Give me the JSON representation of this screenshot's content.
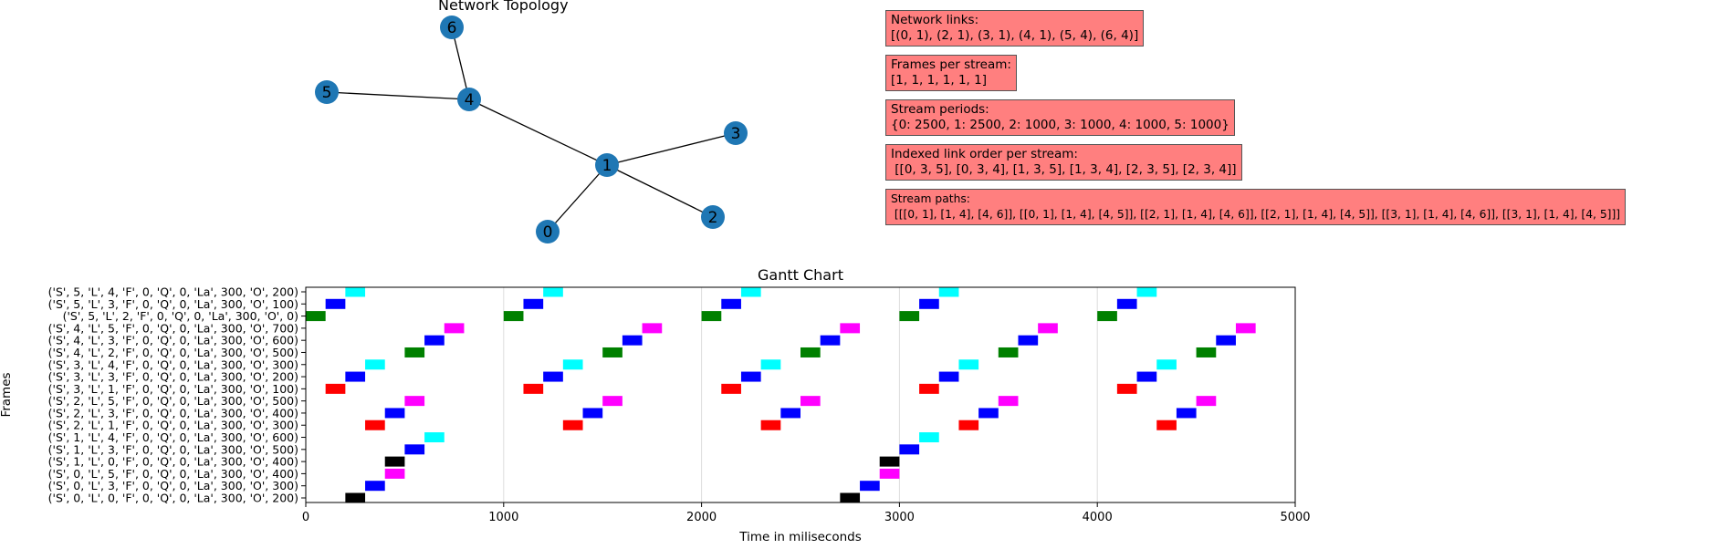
{
  "topology": {
    "title": "Network  Topology",
    "nodes": [
      {
        "id": "0",
        "x": 0.35
      },
      {
        "id": "1",
        "x": 0.5
      },
      {
        "id": "2",
        "x": 0.65
      },
      {
        "id": "3",
        "x": 0.7
      },
      {
        "id": "4",
        "x": 0.4
      },
      {
        "id": "5",
        "x": 0.2
      },
      {
        "id": "6",
        "x": 0.4
      }
    ],
    "edges": [
      [
        "0",
        "1"
      ],
      [
        "2",
        "1"
      ],
      [
        "3",
        "1"
      ],
      [
        "4",
        "1"
      ],
      [
        "5",
        "4"
      ],
      [
        "6",
        "4"
      ]
    ],
    "node_color": "#1f77b4"
  },
  "info_boxes": [
    {
      "name": "network-links-box",
      "title": "Network links:",
      "value": "[(0, 1), (2, 1), (3, 1), (4, 1), (5, 4), (6, 4)]"
    },
    {
      "name": "frames-per-stream-box",
      "title": "Frames per stream:",
      "value": "[1, 1, 1, 1, 1, 1]"
    },
    {
      "name": "stream-periods-box",
      "title": "Stream periods:",
      "value": "{0: 2500, 1: 2500, 2: 1000, 3: 1000, 4: 1000, 5: 1000}"
    },
    {
      "name": "link-order-box",
      "title": "Indexed link order per stream:",
      "value": " [[0, 3, 5], [0, 3, 4], [1, 3, 5], [1, 3, 4], [2, 3, 5], [2, 3, 4]]"
    },
    {
      "name": "stream-paths-box",
      "title": "Stream paths:",
      "value": " [[[0, 1], [1, 4], [4, 6]], [[0, 1], [1, 4], [4, 5]], [[2, 1], [1, 4], [4, 6]], [[2, 1], [1, 4], [4, 5]], [[3, 1], [1, 4], [4, 6]], [[3, 1], [1, 4], [4, 5]]]"
    }
  ],
  "chart_data": {
    "type": "gantt",
    "title": "Gantt Chart",
    "xlabel": "Time in miliseconds",
    "ylabel": "Frames",
    "xlim": [
      0,
      5000
    ],
    "xticks": [
      0,
      1000,
      2000,
      3000,
      4000,
      5000
    ],
    "grid": "vertical",
    "frames": [
      "('S', 5, 'L', 4, 'F', 0, 'Q', 0, 'La', 300, 'O', 200)",
      "('S', 5, 'L', 3, 'F', 0, 'Q', 0, 'La', 300, 'O', 100)",
      "('S', 5, 'L', 2, 'F', 0, 'Q', 0, 'La', 300, 'O', 0)",
      "('S', 4, 'L', 5, 'F', 0, 'Q', 0, 'La', 300, 'O', 700)",
      "('S', 4, 'L', 3, 'F', 0, 'Q', 0, 'La', 300, 'O', 600)",
      "('S', 4, 'L', 2, 'F', 0, 'Q', 0, 'La', 300, 'O', 500)",
      "('S', 3, 'L', 4, 'F', 0, 'Q', 0, 'La', 300, 'O', 300)",
      "('S', 3, 'L', 3, 'F', 0, 'Q', 0, 'La', 300, 'O', 200)",
      "('S', 3, 'L', 1, 'F', 0, 'Q', 0, 'La', 300, 'O', 100)",
      "('S', 2, 'L', 5, 'F', 0, 'Q', 0, 'La', 300, 'O', 500)",
      "('S', 2, 'L', 3, 'F', 0, 'Q', 0, 'La', 300, 'O', 400)",
      "('S', 2, 'L', 1, 'F', 0, 'Q', 0, 'La', 300, 'O', 300)",
      "('S', 1, 'L', 4, 'F', 0, 'Q', 0, 'La', 300, 'O', 600)",
      "('S', 1, 'L', 3, 'F', 0, 'Q', 0, 'La', 300, 'O', 500)",
      "('S', 1, 'L', 0, 'F', 0, 'Q', 0, 'La', 300, 'O', 400)",
      "('S', 0, 'L', 5, 'F', 0, 'Q', 0, 'La', 300, 'O', 400)",
      "('S', 0, 'L', 3, 'F', 0, 'Q', 0, 'La', 300, 'O', 300)",
      "('S', 0, 'L', 0, 'F', 0, 'Q', 0, 'La', 300, 'O', 200)"
    ],
    "bars": [
      {
        "row": 0,
        "offset": 200,
        "duration": 100,
        "period": 1000,
        "repeats": 5,
        "color": "#00ffff"
      },
      {
        "row": 1,
        "offset": 100,
        "duration": 100,
        "period": 1000,
        "repeats": 5,
        "color": "#0000ff"
      },
      {
        "row": 2,
        "offset": 0,
        "duration": 100,
        "period": 1000,
        "repeats": 5,
        "color": "#008000"
      },
      {
        "row": 3,
        "offset": 700,
        "duration": 100,
        "period": 1000,
        "repeats": 5,
        "color": "#ff00ff"
      },
      {
        "row": 4,
        "offset": 600,
        "duration": 100,
        "period": 1000,
        "repeats": 5,
        "color": "#0000ff"
      },
      {
        "row": 5,
        "offset": 500,
        "duration": 100,
        "period": 1000,
        "repeats": 5,
        "color": "#008000"
      },
      {
        "row": 6,
        "offset": 300,
        "duration": 100,
        "period": 1000,
        "repeats": 5,
        "color": "#00ffff"
      },
      {
        "row": 7,
        "offset": 200,
        "duration": 100,
        "period": 1000,
        "repeats": 5,
        "color": "#0000ff"
      },
      {
        "row": 8,
        "offset": 100,
        "duration": 100,
        "period": 1000,
        "repeats": 5,
        "color": "#ff0000"
      },
      {
        "row": 9,
        "offset": 500,
        "duration": 100,
        "period": 1000,
        "repeats": 5,
        "color": "#ff00ff"
      },
      {
        "row": 10,
        "offset": 400,
        "duration": 100,
        "period": 1000,
        "repeats": 5,
        "color": "#0000ff"
      },
      {
        "row": 11,
        "offset": 300,
        "duration": 100,
        "period": 1000,
        "repeats": 5,
        "color": "#ff0000"
      },
      {
        "row": 12,
        "offset": 600,
        "duration": 100,
        "period": 2500,
        "repeats": 2,
        "color": "#00ffff"
      },
      {
        "row": 13,
        "offset": 500,
        "duration": 100,
        "period": 2500,
        "repeats": 2,
        "color": "#0000ff"
      },
      {
        "row": 14,
        "offset": 400,
        "duration": 100,
        "period": 2500,
        "repeats": 2,
        "color": "#000000"
      },
      {
        "row": 15,
        "offset": 400,
        "duration": 100,
        "period": 2500,
        "repeats": 2,
        "color": "#ff00ff"
      },
      {
        "row": 16,
        "offset": 300,
        "duration": 100,
        "period": 2500,
        "repeats": 2,
        "color": "#0000ff"
      },
      {
        "row": 17,
        "offset": 200,
        "duration": 100,
        "period": 2500,
        "repeats": 2,
        "color": "#000000"
      }
    ]
  }
}
